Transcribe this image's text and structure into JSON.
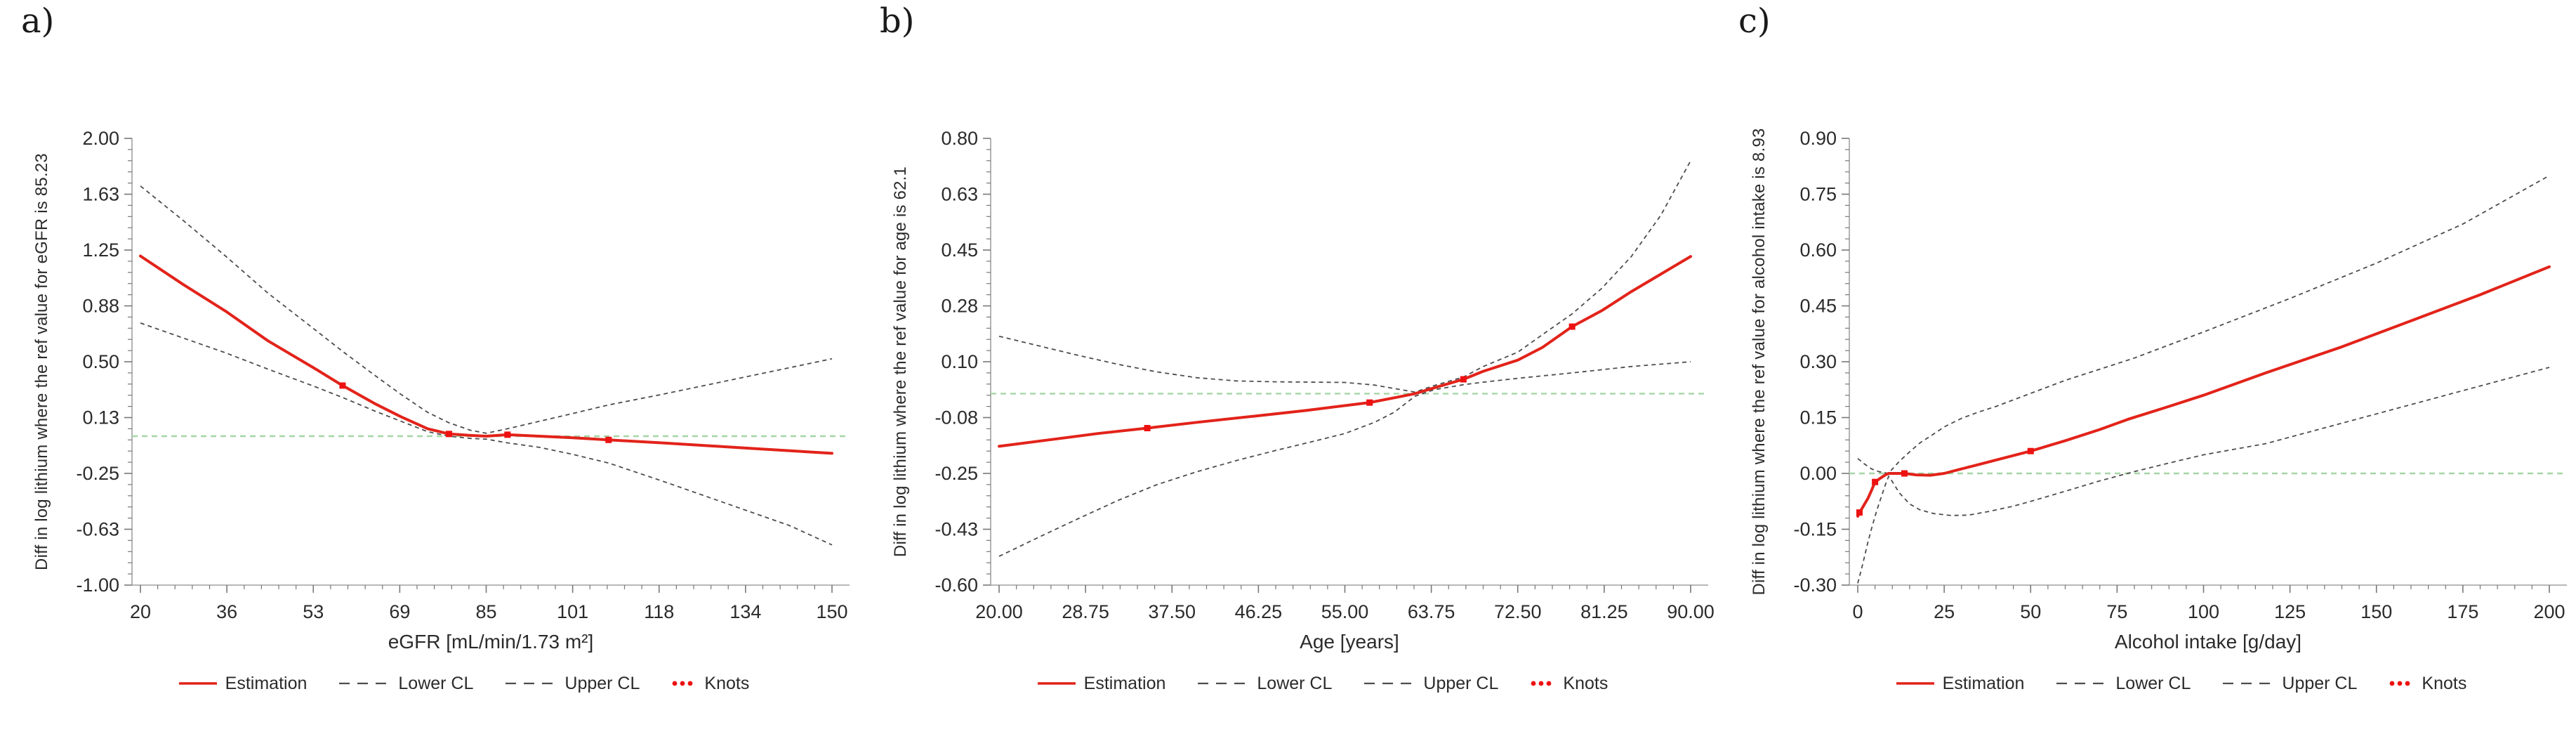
{
  "legend": {
    "estimation": "Estimation",
    "lower_cl": "Lower CL",
    "upper_cl": "Upper CL",
    "knots": "Knots"
  },
  "colors": {
    "estimation_red": "#e2231a",
    "knot_red": "#ee1111",
    "cl_gray": "#4d4d4d",
    "reference_green": "#a5d6a5",
    "axis_gray": "#a0a0a0",
    "tick_gray": "#787878",
    "text_dark": "#2b2b2b"
  },
  "chart_data": [
    {
      "type": "line",
      "panel_label": "a)",
      "ylabel": "Diff in log lithium where the ref value for eGFR is 85.23",
      "xlabel": "eGFR [mL/min/1.73 m²]",
      "reference_value": 85.23,
      "reference_line_y": 0,
      "xlim": [
        20,
        150
      ],
      "ylim": [
        -1.0,
        2.0
      ],
      "x_tick_labels": [
        "20",
        "36",
        "53",
        "69",
        "85",
        "101",
        "118",
        "134",
        "150"
      ],
      "y_tick_labels": [
        "2.00",
        "1.63",
        "1.25",
        "0.88",
        "0.50",
        "0.13",
        "-0.25",
        "-0.63",
        "-1.00"
      ],
      "minor_ticks_per_interval": 4,
      "legend_position": "bottom",
      "grid": false,
      "series": [
        {
          "name": "Estimation",
          "style": "solid",
          "points": [
            [
              20,
              1.21
            ],
            [
              28,
              1.02
            ],
            [
              36,
              0.84
            ],
            [
              44,
              0.64
            ],
            [
              53,
              0.45
            ],
            [
              58,
              0.34
            ],
            [
              64,
              0.22
            ],
            [
              69,
              0.13
            ],
            [
              74,
              0.05
            ],
            [
              78,
              0.015
            ],
            [
              82,
              0.005
            ],
            [
              85,
              0.0
            ],
            [
              89,
              0.01
            ],
            [
              95,
              0.0
            ],
            [
              101,
              -0.01
            ],
            [
              108,
              -0.025
            ],
            [
              118,
              -0.045
            ],
            [
              134,
              -0.08
            ],
            [
              150,
              -0.115
            ]
          ]
        },
        {
          "name": "Lower CL",
          "style": "dashed",
          "points": [
            [
              20,
              0.76
            ],
            [
              28,
              0.66
            ],
            [
              36,
              0.56
            ],
            [
              44,
              0.45
            ],
            [
              53,
              0.33
            ],
            [
              58,
              0.26
            ],
            [
              64,
              0.17
            ],
            [
              69,
              0.1
            ],
            [
              74,
              0.03
            ],
            [
              78,
              0.0
            ],
            [
              82,
              -0.015
            ],
            [
              85,
              -0.02
            ],
            [
              89,
              -0.045
            ],
            [
              95,
              -0.075
            ],
            [
              101,
              -0.12
            ],
            [
              108,
              -0.18
            ],
            [
              118,
              -0.3
            ],
            [
              126,
              -0.4
            ],
            [
              134,
              -0.5
            ],
            [
              142,
              -0.6
            ],
            [
              150,
              -0.73
            ]
          ]
        },
        {
          "name": "Upper CL",
          "style": "dashed",
          "points": [
            [
              20,
              1.68
            ],
            [
              28,
              1.45
            ],
            [
              36,
              1.21
            ],
            [
              44,
              0.96
            ],
            [
              53,
              0.71
            ],
            [
              58,
              0.57
            ],
            [
              64,
              0.41
            ],
            [
              69,
              0.28
            ],
            [
              74,
              0.16
            ],
            [
              78,
              0.09
            ],
            [
              82,
              0.04
            ],
            [
              85,
              0.02
            ],
            [
              89,
              0.05
            ],
            [
              95,
              0.1
            ],
            [
              101,
              0.15
            ],
            [
              108,
              0.21
            ],
            [
              118,
              0.28
            ],
            [
              126,
              0.34
            ],
            [
              134,
              0.4
            ],
            [
              142,
              0.46
            ],
            [
              150,
              0.52
            ]
          ]
        },
        {
          "name": "Knots",
          "style": "points",
          "points": [
            [
              58,
              0.34
            ],
            [
              78,
              0.015
            ],
            [
              89,
              0.01
            ],
            [
              108,
              -0.025
            ]
          ]
        }
      ]
    },
    {
      "type": "line",
      "panel_label": "b)",
      "ylabel": "Diff in log lithium where the ref value for age is 62.1",
      "xlabel": "Age [years]",
      "reference_value": 62.1,
      "reference_line_y": 0,
      "xlim": [
        20,
        90
      ],
      "ylim": [
        -0.6,
        0.8
      ],
      "x_tick_labels": [
        "20.00",
        "28.75",
        "37.50",
        "46.25",
        "55.00",
        "63.75",
        "72.50",
        "81.25",
        "90.00"
      ],
      "y_tick_labels": [
        "0.80",
        "0.63",
        "0.45",
        "0.28",
        "0.10",
        "-0.08",
        "-0.25",
        "-0.43",
        "-0.60"
      ],
      "minor_ticks_per_interval": 4,
      "legend_position": "bottom",
      "grid": false,
      "series": [
        {
          "name": "Estimation",
          "style": "solid",
          "points": [
            [
              20,
              -0.165
            ],
            [
              25,
              -0.145
            ],
            [
              30,
              -0.125
            ],
            [
              35,
              -0.108
            ],
            [
              40,
              -0.09
            ],
            [
              46,
              -0.07
            ],
            [
              51,
              -0.053
            ],
            [
              57.5,
              -0.028
            ],
            [
              60,
              -0.013
            ],
            [
              62.1,
              0.0
            ],
            [
              64,
              0.018
            ],
            [
              67,
              0.045
            ],
            [
              69,
              0.07
            ],
            [
              72.5,
              0.105
            ],
            [
              75,
              0.145
            ],
            [
              78,
              0.21
            ],
            [
              81,
              0.26
            ],
            [
              84,
              0.32
            ],
            [
              87,
              0.375
            ],
            [
              90,
              0.43
            ]
          ]
        },
        {
          "name": "Lower CL",
          "style": "dashed",
          "points": [
            [
              20,
              -0.51
            ],
            [
              24,
              -0.45
            ],
            [
              28,
              -0.392
            ],
            [
              32,
              -0.335
            ],
            [
              36,
              -0.285
            ],
            [
              40,
              -0.245
            ],
            [
              44,
              -0.21
            ],
            [
              48,
              -0.178
            ],
            [
              52,
              -0.148
            ],
            [
              55,
              -0.125
            ],
            [
              58,
              -0.09
            ],
            [
              60,
              -0.058
            ],
            [
              62.1,
              -0.008
            ],
            [
              64,
              0.012
            ],
            [
              67,
              0.028
            ],
            [
              69,
              0.036
            ],
            [
              72.5,
              0.048
            ],
            [
              78,
              0.065
            ],
            [
              84,
              0.085
            ],
            [
              90,
              0.1
            ]
          ]
        },
        {
          "name": "Upper CL",
          "style": "dashed",
          "points": [
            [
              20,
              0.18
            ],
            [
              24,
              0.15
            ],
            [
              28,
              0.12
            ],
            [
              32,
              0.092
            ],
            [
              36,
              0.068
            ],
            [
              40,
              0.05
            ],
            [
              44,
              0.04
            ],
            [
              48,
              0.037
            ],
            [
              52,
              0.036
            ],
            [
              55,
              0.035
            ],
            [
              58,
              0.027
            ],
            [
              60,
              0.016
            ],
            [
              62.1,
              0.005
            ],
            [
              64,
              0.025
            ],
            [
              67,
              0.052
            ],
            [
              69,
              0.085
            ],
            [
              72.5,
              0.13
            ],
            [
              75,
              0.185
            ],
            [
              78,
              0.25
            ],
            [
              81,
              0.33
            ],
            [
              84,
              0.43
            ],
            [
              87,
              0.56
            ],
            [
              90,
              0.73
            ]
          ]
        },
        {
          "name": "Knots",
          "style": "points",
          "points": [
            [
              35,
              -0.108
            ],
            [
              57.5,
              -0.028
            ],
            [
              67,
              0.045
            ],
            [
              78,
              0.21
            ]
          ]
        }
      ]
    },
    {
      "type": "line",
      "panel_label": "c)",
      "ylabel": "Diff in log lithium where the ref value for alcohol intake  is 8.93",
      "xlabel": "Alcohol intake [g/day]",
      "reference_value": 8.93,
      "reference_line_y": 0,
      "xlim": [
        0,
        200
      ],
      "ylim": [
        -0.3,
        0.9
      ],
      "x_tick_labels": [
        "0",
        "25",
        "50",
        "75",
        "100",
        "125",
        "150",
        "175",
        "200"
      ],
      "y_tick_labels": [
        "0.90",
        "0.75",
        "0.60",
        "0.45",
        "0.30",
        "0.15",
        "0.00",
        "-0.15",
        "-0.30"
      ],
      "minor_ticks_per_interval": 4,
      "legend_position": "bottom",
      "grid": false,
      "series": [
        {
          "name": "Estimation",
          "style": "solid",
          "points": [
            [
              0,
              -0.115
            ],
            [
              1,
              -0.098
            ],
            [
              2,
              -0.082
            ],
            [
              3,
              -0.066
            ],
            [
              4,
              -0.045
            ],
            [
              5,
              -0.023
            ],
            [
              6.5,
              -0.013
            ],
            [
              8,
              -0.004
            ],
            [
              8.93,
              0.0
            ],
            [
              11,
              0.0
            ],
            [
              13.5,
              0.0
            ],
            [
              17,
              -0.004
            ],
            [
              21,
              -0.005
            ],
            [
              25,
              0.0
            ],
            [
              30,
              0.012
            ],
            [
              35,
              0.024
            ],
            [
              40,
              0.036
            ],
            [
              45,
              0.048
            ],
            [
              50,
              0.06
            ],
            [
              60,
              0.088
            ],
            [
              70,
              0.118
            ],
            [
              78,
              0.145
            ],
            [
              90,
              0.18
            ],
            [
              100,
              0.21
            ],
            [
              118,
              0.27
            ],
            [
              140,
              0.34
            ],
            [
              160,
              0.41
            ],
            [
              180,
              0.48
            ],
            [
              200,
              0.555
            ]
          ]
        },
        {
          "name": "Lower CL",
          "style": "dashed",
          "points": [
            [
              0,
              -0.295
            ],
            [
              1,
              -0.26
            ],
            [
              2,
              -0.222
            ],
            [
              3,
              -0.182
            ],
            [
              4,
              -0.148
            ],
            [
              5,
              -0.115
            ],
            [
              6,
              -0.085
            ],
            [
              7,
              -0.058
            ],
            [
              8,
              -0.03
            ],
            [
              8.93,
              -0.008
            ],
            [
              10,
              -0.022
            ],
            [
              12,
              -0.052
            ],
            [
              15,
              -0.082
            ],
            [
              18,
              -0.098
            ],
            [
              22,
              -0.108
            ],
            [
              27,
              -0.113
            ],
            [
              32,
              -0.112
            ],
            [
              38,
              -0.102
            ],
            [
              45,
              -0.088
            ],
            [
              50,
              -0.075
            ],
            [
              60,
              -0.048
            ],
            [
              70,
              -0.02
            ],
            [
              80,
              0.005
            ],
            [
              90,
              0.028
            ],
            [
              100,
              0.05
            ],
            [
              118,
              0.08
            ],
            [
              140,
              0.135
            ],
            [
              160,
              0.185
            ],
            [
              180,
              0.235
            ],
            [
              200,
              0.285
            ]
          ]
        },
        {
          "name": "Upper CL",
          "style": "dashed",
          "points": [
            [
              0,
              0.04
            ],
            [
              2,
              0.025
            ],
            [
              4,
              0.012
            ],
            [
              6,
              0.005
            ],
            [
              8.93,
              0.0
            ],
            [
              10,
              0.012
            ],
            [
              12,
              0.032
            ],
            [
              15,
              0.058
            ],
            [
              18,
              0.082
            ],
            [
              21,
              0.1
            ],
            [
              25,
              0.125
            ],
            [
              30,
              0.148
            ],
            [
              35,
              0.165
            ],
            [
              40,
              0.18
            ],
            [
              50,
              0.215
            ],
            [
              60,
              0.25
            ],
            [
              70,
              0.28
            ],
            [
              80,
              0.31
            ],
            [
              100,
              0.38
            ],
            [
              125,
              0.47
            ],
            [
              150,
              0.565
            ],
            [
              175,
              0.67
            ],
            [
              200,
              0.8
            ]
          ]
        },
        {
          "name": "Knots",
          "style": "points",
          "points": [
            [
              0.5,
              -0.105
            ],
            [
              5,
              -0.023
            ],
            [
              13.5,
              0.0
            ],
            [
              50,
              0.06
            ]
          ]
        }
      ]
    }
  ]
}
